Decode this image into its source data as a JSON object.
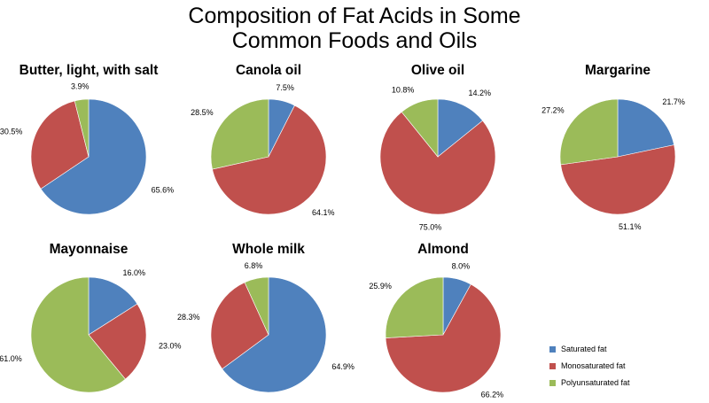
{
  "title_lines": [
    "Composition of Fat Acids in Some",
    "Common Foods and Oils"
  ],
  "chart_data": {
    "type": "pie",
    "series_names": [
      "Saturated fat",
      "Monosaturated fat",
      "Polyunsaturated fat"
    ],
    "colors": [
      "#4f81bd",
      "#c0504d",
      "#9bbb59"
    ],
    "legend_position": "bottom-right",
    "pies": [
      {
        "name": "Butter, light, with salt",
        "values": [
          65.6,
          30.5,
          3.9
        ],
        "labels": [
          "65.6%",
          "30.5%",
          "3.9%"
        ]
      },
      {
        "name": "Canola oil",
        "values": [
          7.5,
          64.1,
          28.5
        ],
        "labels": [
          "7.5%",
          "64.1%",
          "28.5%"
        ]
      },
      {
        "name": "Olive oil",
        "values": [
          14.2,
          75.0,
          10.8
        ],
        "labels": [
          "14.2%",
          "75.0%",
          "10.8%"
        ]
      },
      {
        "name": "Margarine",
        "values": [
          21.7,
          51.1,
          27.2
        ],
        "labels": [
          "21.7%",
          "51.1%",
          "27.2%"
        ]
      },
      {
        "name": "Mayonnaise",
        "values": [
          16.0,
          23.0,
          61.0
        ],
        "labels": [
          "16.0%",
          "23.0%",
          "61.0%"
        ]
      },
      {
        "name": "Whole milk",
        "values": [
          64.9,
          28.3,
          6.8
        ],
        "labels": [
          "64.9%",
          "28.3%",
          "6.8%"
        ]
      },
      {
        "name": "Almond",
        "values": [
          8.0,
          66.2,
          25.9
        ],
        "labels": [
          "8.0%",
          "66.2%",
          "25.9%"
        ]
      }
    ]
  }
}
